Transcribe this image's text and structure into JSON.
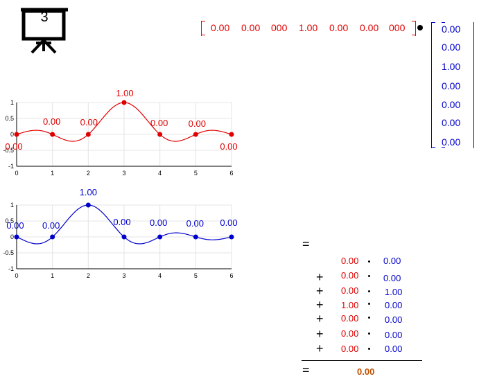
{
  "step_number": "3",
  "row_vector": [
    "0.00",
    "0.00",
    "000",
    "1.00",
    "0.00",
    "0.00",
    "000"
  ],
  "column_vector": [
    "0.00",
    "0.00",
    "1.00",
    "0.00",
    "0.00",
    "0.00",
    "0.00"
  ],
  "equals_sign": "=",
  "sum_terms": [
    {
      "op": "",
      "left": "0.00",
      "right": "0.00"
    },
    {
      "op": "+",
      "left": "0.00",
      "right": "0.00"
    },
    {
      "op": "+",
      "left": "0.00",
      "right": "1.00"
    },
    {
      "op": "+",
      "left": "1.00",
      "right": "0.00"
    },
    {
      "op": "+",
      "left": "0.00",
      "right": "0.00"
    },
    {
      "op": "+",
      "left": "0.00",
      "right": "0.00"
    },
    {
      "op": "+",
      "left": "0.00",
      "right": "0.00"
    }
  ],
  "result": "0.00",
  "colors": {
    "red": "#e00000",
    "blue": "#0000cc",
    "result": "#c05000"
  },
  "chart_data": [
    {
      "type": "line",
      "x": [
        0,
        1,
        2,
        3,
        4,
        5,
        6
      ],
      "y": [
        0,
        0,
        0,
        1,
        0,
        0,
        0
      ],
      "point_labels": [
        "0.00",
        "0.00",
        "0.00",
        "1.00",
        "0.00",
        "0.00",
        "0.00"
      ],
      "xlim": [
        0,
        6
      ],
      "ylim": [
        -1,
        1
      ],
      "xticks": [
        "0",
        "1",
        "2",
        "3",
        "4",
        "5",
        "6"
      ],
      "yticks": [
        "1",
        "0.5",
        "0",
        "-0.5",
        "-1"
      ],
      "grid": true,
      "color": "#e00000"
    },
    {
      "type": "line",
      "x": [
        0,
        1,
        2,
        3,
        4,
        5,
        6
      ],
      "y": [
        0,
        0,
        1,
        0,
        0,
        0,
        0
      ],
      "point_labels": [
        "0.00",
        "0.00",
        "1.00",
        "0.00",
        "0.00",
        "0.00",
        "0.00"
      ],
      "xlim": [
        0,
        6
      ],
      "ylim": [
        -1,
        1
      ],
      "xticks": [
        "0",
        "1",
        "2",
        "3",
        "4",
        "5",
        "6"
      ],
      "yticks": [
        "1",
        "0.5",
        "0",
        "-0.5",
        "-1"
      ],
      "grid": true,
      "color": "#0000cc"
    }
  ]
}
